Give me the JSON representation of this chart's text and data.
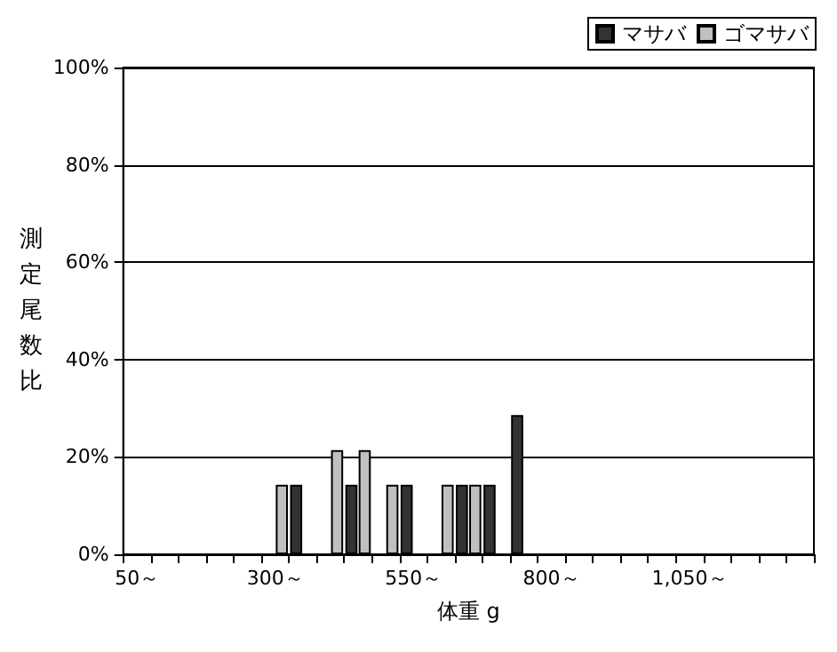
{
  "chart_data": {
    "type": "bar",
    "xlabel": "体重 g",
    "ylabel": "測定尾数比",
    "categories": [
      "50～",
      null,
      null,
      null,
      null,
      "300～",
      null,
      null,
      null,
      null,
      "550～",
      null,
      null,
      null,
      null,
      "800～",
      null,
      null,
      null,
      null,
      "1,050～",
      null,
      null,
      null,
      null
    ],
    "series": [
      {
        "name": "マサバ",
        "color": "#333333",
        "values": [
          0,
          0,
          0,
          0,
          0,
          0,
          14.3,
          0,
          14.3,
          0,
          14.3,
          0,
          14.3,
          14.3,
          28.6,
          0,
          0,
          0,
          0,
          0,
          0,
          0,
          0,
          0,
          0
        ]
      },
      {
        "name": "ゴマサバ",
        "color": "#c0c0c0",
        "values": [
          0,
          0,
          0,
          0,
          0,
          14.3,
          0,
          21.4,
          21.4,
          14.3,
          0,
          14.3,
          14.3,
          0,
          0,
          0,
          0,
          0,
          0,
          0,
          0,
          0,
          0,
          0,
          0
        ]
      }
    ],
    "ylim": [
      0,
      100
    ],
    "yticks": [
      {
        "value": 0,
        "label": "0%"
      },
      {
        "value": 20,
        "label": "20%"
      },
      {
        "value": 40,
        "label": "40%"
      },
      {
        "value": 60,
        "label": "60%"
      },
      {
        "value": 80,
        "label": "80%"
      },
      {
        "value": 100,
        "label": "100%"
      }
    ],
    "grid": "y",
    "legend": "top right"
  }
}
